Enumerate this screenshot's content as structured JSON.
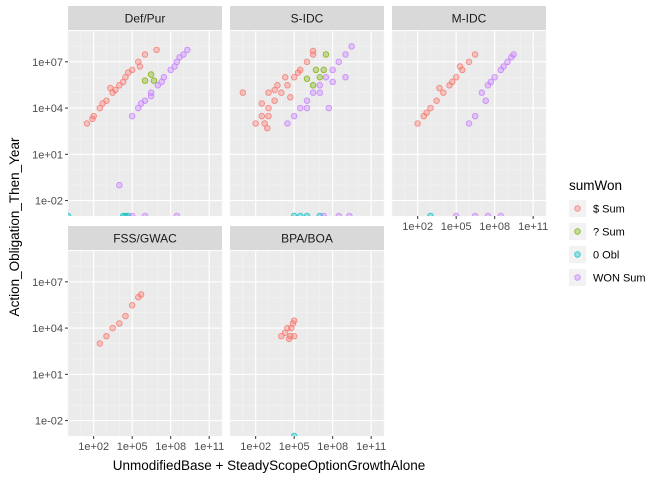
{
  "chart_data": {
    "type": "scatter",
    "xlabel": "UnmodifiedBase + SteadyScopeOptionGrowthAlone",
    "ylabel": "Action_Obligation_Then_Year",
    "x_scale": "log10",
    "y_scale": "log10",
    "xlim": [
      1,
      1000000000000.0
    ],
    "ylim": [
      0.001,
      1000000000.0
    ],
    "x_ticks": [
      "1e+02",
      "1e+05",
      "1e+08",
      "1e+11"
    ],
    "y_ticks": [
      "1e-02",
      "1e+01",
      "1e+04",
      "1e+07"
    ],
    "grid": true,
    "legend": {
      "title": "sumWon",
      "position": "right",
      "entries": [
        {
          "label": "$ Sum",
          "color": "#F8766D"
        },
        {
          "label": "? Sum",
          "color": "#7CAE00"
        },
        {
          "label": "0 Obl",
          "color": "#00BFC4"
        },
        {
          "label": "WON Sum",
          "color": "#C77CFF"
        }
      ]
    },
    "facets": [
      {
        "label": "Def/Pur",
        "series": [
          {
            "name": "$ Sum",
            "points": [
              [
                30,
                1000
              ],
              [
                100,
                3000
              ],
              [
                300,
                10000
              ],
              [
                1000,
                30000
              ],
              [
                3000,
                100000
              ],
              [
                10000,
                300000
              ],
              [
                30000,
                1000000
              ],
              [
                100000,
                3000000
              ],
              [
                300000,
                10000000
              ],
              [
                1000000,
                30000000
              ],
              [
                80,
                2000
              ],
              [
                500,
                20000
              ],
              [
                5000,
                150000
              ],
              [
                50000,
                2000000
              ],
              [
                2000,
                200000
              ],
              [
                20000,
                500000
              ],
              [
                400000,
                5000000
              ],
              [
                8000000,
                60000000
              ]
            ]
          },
          {
            "name": "? Sum",
            "points": [
              [
                1000000,
                600000
              ],
              [
                5000000,
                600000
              ],
              [
                3000000,
                1500000
              ]
            ]
          },
          {
            "name": "0 Obl",
            "points": [
              [
                1,
                0.001
              ],
              [
                20000,
                0.001
              ],
              [
                30000,
                0.001
              ],
              [
                50000,
                0.001
              ]
            ]
          },
          {
            "name": "WON Sum",
            "points": [
              [
                100000,
                3000
              ],
              [
                300000,
                10000
              ],
              [
                1000000,
                30000
              ],
              [
                3000000,
                100000
              ],
              [
                10000000,
                300000
              ],
              [
                30000000,
                1000000
              ],
              [
                100000000,
                3000000
              ],
              [
                300000000,
                10000000
              ],
              [
                1000000000,
                30000000
              ],
              [
                200000000,
                5000000
              ],
              [
                2000000000,
                60000000
              ],
              [
                500000,
                20000
              ],
              [
                3000000,
                60000
              ],
              [
                20000000,
                500000
              ],
              [
                500000000,
                20000000
              ],
              [
                10000,
                0.1
              ],
              [
                100000,
                0.001
              ],
              [
                1000000,
                0.001
              ],
              [
                300000000,
                0.001
              ]
            ]
          }
        ]
      },
      {
        "label": "S-IDC",
        "series": [
          {
            "name": "$ Sum",
            "points": [
              [
                10,
                100000
              ],
              [
                100,
                1000
              ],
              [
                300,
                3000
              ],
              [
                1000,
                10000
              ],
              [
                3000,
                30000
              ],
              [
                10000,
                100000
              ],
              [
                30000,
                300000
              ],
              [
                100000,
                1000000
              ],
              [
                300000,
                3000000
              ],
              [
                1000000,
                10000000
              ],
              [
                3000000,
                30000000
              ],
              [
                300,
                20000
              ],
              [
                1000,
                100000
              ],
              [
                3000,
                150000
              ],
              [
                20000,
                1000000
              ],
              [
                500,
                1000
              ],
              [
                800,
                500
              ],
              [
                50000,
                50000
              ],
              [
                5000,
                300000
              ],
              [
                200000,
                2000000
              ],
              [
                3000000,
                50000000
              ],
              [
                1000,
                3000
              ]
            ]
          },
          {
            "name": "? Sum",
            "points": [
              [
                3000000,
                300000
              ],
              [
                10000000,
                1000000
              ],
              [
                5000000,
                3000000
              ],
              [
                20000000,
                3000000
              ],
              [
                30000000,
                30000000
              ],
              [
                1000000,
                800000
              ]
            ]
          },
          {
            "name": "0 Obl",
            "points": [
              [
                100000,
                0.001
              ],
              [
                300000,
                0.001
              ],
              [
                1000000,
                0.001
              ],
              [
                10000000,
                0.001
              ]
            ]
          },
          {
            "name": "WON Sum",
            "points": [
              [
                30000,
                1000
              ],
              [
                100000,
                3000
              ],
              [
                300000,
                10000
              ],
              [
                1000000,
                30000
              ],
              [
                3000000,
                100000
              ],
              [
                10000000,
                300000
              ],
              [
                30000000,
                1000000
              ],
              [
                100000000,
                3000000
              ],
              [
                300000000,
                10000000
              ],
              [
                1000000000,
                30000000
              ],
              [
                3000000000,
                100000000
              ],
              [
                1000000,
                10000
              ],
              [
                10000000,
                100000
              ],
              [
                100000000,
                500000
              ],
              [
                50000000,
                10000
              ],
              [
                1000000000,
                1000000
              ],
              [
                20000000,
                0.001
              ],
              [
                300000000,
                0.001
              ],
              [
                2000000000,
                0.001
              ]
            ]
          }
        ]
      },
      {
        "label": "M-IDC",
        "series": [
          {
            "name": "$ Sum",
            "points": [
              [
                100,
                1000
              ],
              [
                300,
                3000
              ],
              [
                1000,
                10000
              ],
              [
                3000,
                30000
              ],
              [
                10000,
                100000
              ],
              [
                30000,
                300000
              ],
              [
                100000,
                1000000
              ],
              [
                300000,
                3000000
              ],
              [
                1000000,
                10000000
              ],
              [
                3000000,
                30000000
              ],
              [
                500,
                5000
              ],
              [
                5000,
                200000
              ],
              [
                50000,
                500000
              ],
              [
                200000,
                5000000
              ]
            ]
          },
          {
            "name": "0 Obl",
            "points": [
              [
                1000,
                0.001
              ]
            ]
          },
          {
            "name": "WON Sum",
            "points": [
              [
                10000000,
                100000
              ],
              [
                30000000,
                300000
              ],
              [
                100000000,
                1000000
              ],
              [
                300000000,
                3000000
              ],
              [
                1000000000,
                10000000
              ],
              [
                3000000000,
                30000000
              ],
              [
                50000000,
                500000
              ],
              [
                500000000,
                5000000
              ],
              [
                2000000000,
                20000000
              ],
              [
                20000000,
                30000
              ],
              [
                3000000,
                3000
              ],
              [
                1000000,
                1000
              ],
              [
                100000,
                0.001
              ],
              [
                3000000,
                0.001
              ],
              [
                30000000,
                0.001
              ],
              [
                300000000,
                0.001
              ]
            ]
          }
        ]
      },
      {
        "label": "FSS/GWAC",
        "series": [
          {
            "name": "$ Sum",
            "points": [
              [
                300,
                1000
              ],
              [
                1000,
                3000
              ],
              [
                3000,
                10000
              ],
              [
                10000,
                20000
              ],
              [
                30000,
                60000
              ],
              [
                100000,
                300000
              ],
              [
                300000,
                1000000
              ],
              [
                500000,
                1500000
              ]
            ]
          }
        ]
      },
      {
        "label": "BPA/BOA",
        "series": [
          {
            "name": "$ Sum",
            "points": [
              [
                10000,
                3000
              ],
              [
                20000,
                5000
              ],
              [
                30000,
                10000
              ],
              [
                50000,
                3000
              ],
              [
                100000,
                3000
              ],
              [
                80000,
                20000
              ],
              [
                100000,
                30000
              ],
              [
                60000,
                10000
              ],
              [
                40000,
                2000
              ]
            ]
          },
          {
            "name": "0 Obl",
            "points": [
              [
                100000,
                0.001
              ]
            ]
          }
        ]
      }
    ]
  }
}
